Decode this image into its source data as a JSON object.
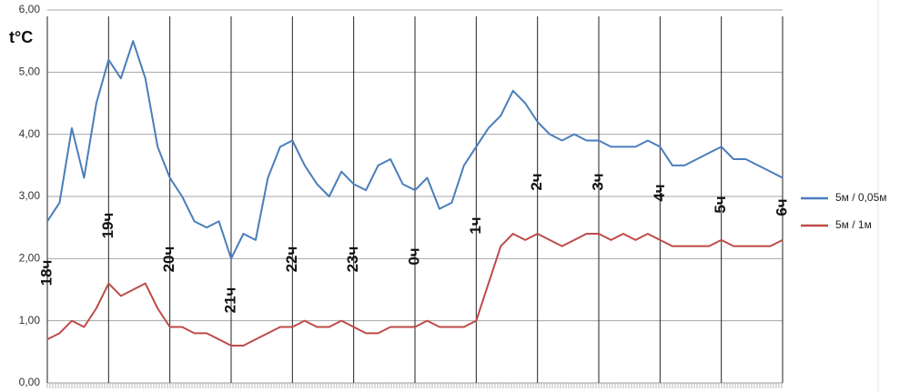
{
  "chart_data": {
    "type": "line",
    "ylabel": "t°C",
    "x": [
      0,
      0.2,
      0.4,
      0.6,
      0.8,
      1,
      1.2,
      1.4,
      1.6,
      1.8,
      2,
      2.2,
      2.4,
      2.6,
      2.8,
      3,
      3.2,
      3.4,
      3.6,
      3.8,
      4,
      4.2,
      4.4,
      4.6,
      4.8,
      5,
      5.2,
      5.4,
      5.6,
      5.8,
      6,
      6.2,
      6.4,
      6.6,
      6.8,
      7,
      7.2,
      7.4,
      7.6,
      7.8,
      8,
      8.2,
      8.4,
      8.6,
      8.8,
      9,
      9.2,
      9.4,
      9.6,
      9.8,
      10,
      10.2,
      10.4,
      10.6,
      10.8,
      11,
      11.2,
      11.4,
      11.6,
      11.8,
      12
    ],
    "series": [
      {
        "name": "5м / 0,05м",
        "color": "#4a7ebb",
        "values": [
          2.6,
          2.9,
          4.1,
          3.3,
          4.5,
          5.2,
          4.9,
          5.5,
          4.9,
          3.8,
          3.3,
          3.0,
          2.6,
          2.5,
          2.6,
          2.0,
          2.4,
          2.3,
          3.3,
          3.8,
          3.9,
          3.5,
          3.2,
          3.0,
          3.4,
          3.2,
          3.1,
          3.5,
          3.6,
          3.2,
          3.1,
          3.3,
          2.8,
          2.9,
          3.5,
          3.8,
          4.1,
          4.3,
          4.7,
          4.5,
          4.2,
          4.0,
          3.9,
          4.0,
          3.9,
          3.9,
          3.8,
          3.8,
          3.8,
          3.9,
          3.8,
          3.5,
          3.5,
          3.6,
          3.7,
          3.8,
          3.6,
          3.6,
          3.5,
          3.4,
          3.3
        ]
      },
      {
        "name": "5м / 1м",
        "color": "#be4b48",
        "values": [
          0.7,
          0.8,
          1.0,
          0.9,
          1.2,
          1.6,
          1.4,
          1.5,
          1.6,
          1.2,
          0.9,
          0.9,
          0.8,
          0.8,
          0.7,
          0.6,
          0.6,
          0.7,
          0.8,
          0.9,
          0.9,
          1.0,
          0.9,
          0.9,
          1.0,
          0.9,
          0.8,
          0.8,
          0.9,
          0.9,
          0.9,
          1.0,
          0.9,
          0.9,
          0.9,
          1.0,
          1.6,
          2.2,
          2.4,
          2.3,
          2.4,
          2.3,
          2.2,
          2.3,
          2.4,
          2.4,
          2.3,
          2.4,
          2.3,
          2.4,
          2.3,
          2.2,
          2.2,
          2.2,
          2.2,
          2.3,
          2.2,
          2.2,
          2.2,
          2.2,
          2.3
        ]
      }
    ],
    "xlim": [
      0,
      12
    ],
    "xticks": [
      {
        "value": 0,
        "label": "18ч"
      },
      {
        "value": 1,
        "label": "19ч"
      },
      {
        "value": 2,
        "label": "20ч"
      },
      {
        "value": 3,
        "label": "21ч"
      },
      {
        "value": 4,
        "label": "22ч"
      },
      {
        "value": 5,
        "label": "23ч"
      },
      {
        "value": 6,
        "label": "0ч"
      },
      {
        "value": 7,
        "label": "1ч"
      },
      {
        "value": 8,
        "label": "2ч"
      },
      {
        "value": 9,
        "label": "3ч"
      },
      {
        "value": 10,
        "label": "4ч"
      },
      {
        "value": 11,
        "label": "5ч"
      },
      {
        "value": 12,
        "label": "6ч"
      }
    ],
    "ylim": [
      0,
      6
    ],
    "yticks": [
      {
        "value": 0,
        "label": "0,00"
      },
      {
        "value": 1,
        "label": "1,00"
      },
      {
        "value": 2,
        "label": "2,00"
      },
      {
        "value": 3,
        "label": "3,00"
      },
      {
        "value": 4,
        "label": "4,00"
      },
      {
        "value": 5,
        "label": "5,00"
      },
      {
        "value": 6,
        "label": "6,00"
      }
    ],
    "grid": true,
    "legend": "right"
  }
}
